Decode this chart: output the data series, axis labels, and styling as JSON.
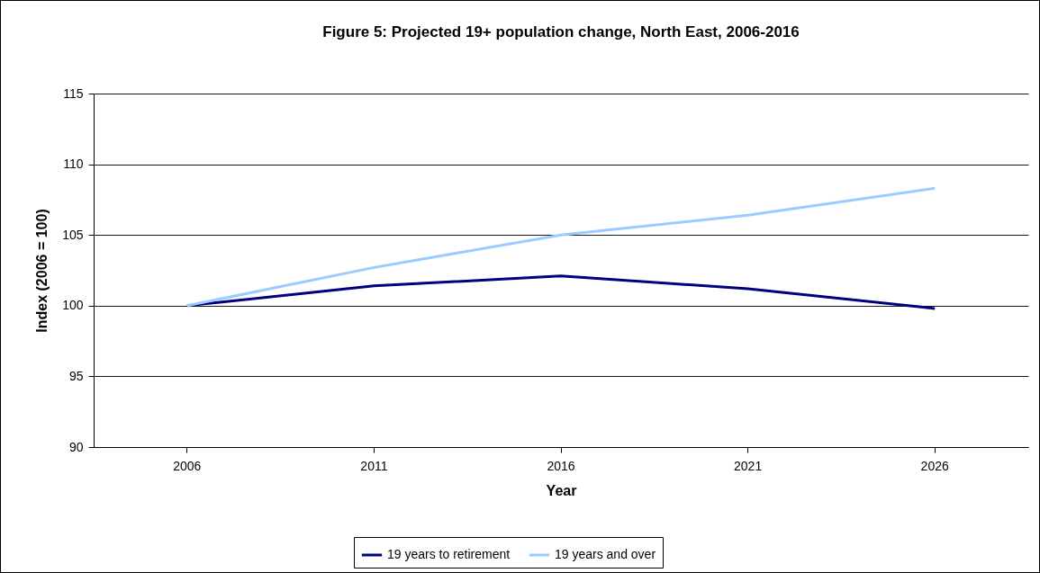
{
  "chart_data": {
    "type": "line",
    "title": "Figure 5: Projected 19+ population change, North East, 2006-2016",
    "xlabel": "Year",
    "ylabel": "Index (2006 = 100)",
    "categories": [
      "2006",
      "2011",
      "2016",
      "2021",
      "2026"
    ],
    "series": [
      {
        "name": "19 years to retirement",
        "color": "#000080",
        "values": [
          100,
          101.4,
          102.1,
          101.2,
          99.8
        ]
      },
      {
        "name": "19 years and over",
        "color": "#99ccff",
        "values": [
          100,
          102.7,
          105.0,
          106.4,
          108.3
        ]
      }
    ],
    "ylim": [
      90,
      115
    ],
    "yticks": [
      90,
      95,
      100,
      105,
      110,
      115
    ],
    "grid": "y",
    "legend": "bottom"
  }
}
